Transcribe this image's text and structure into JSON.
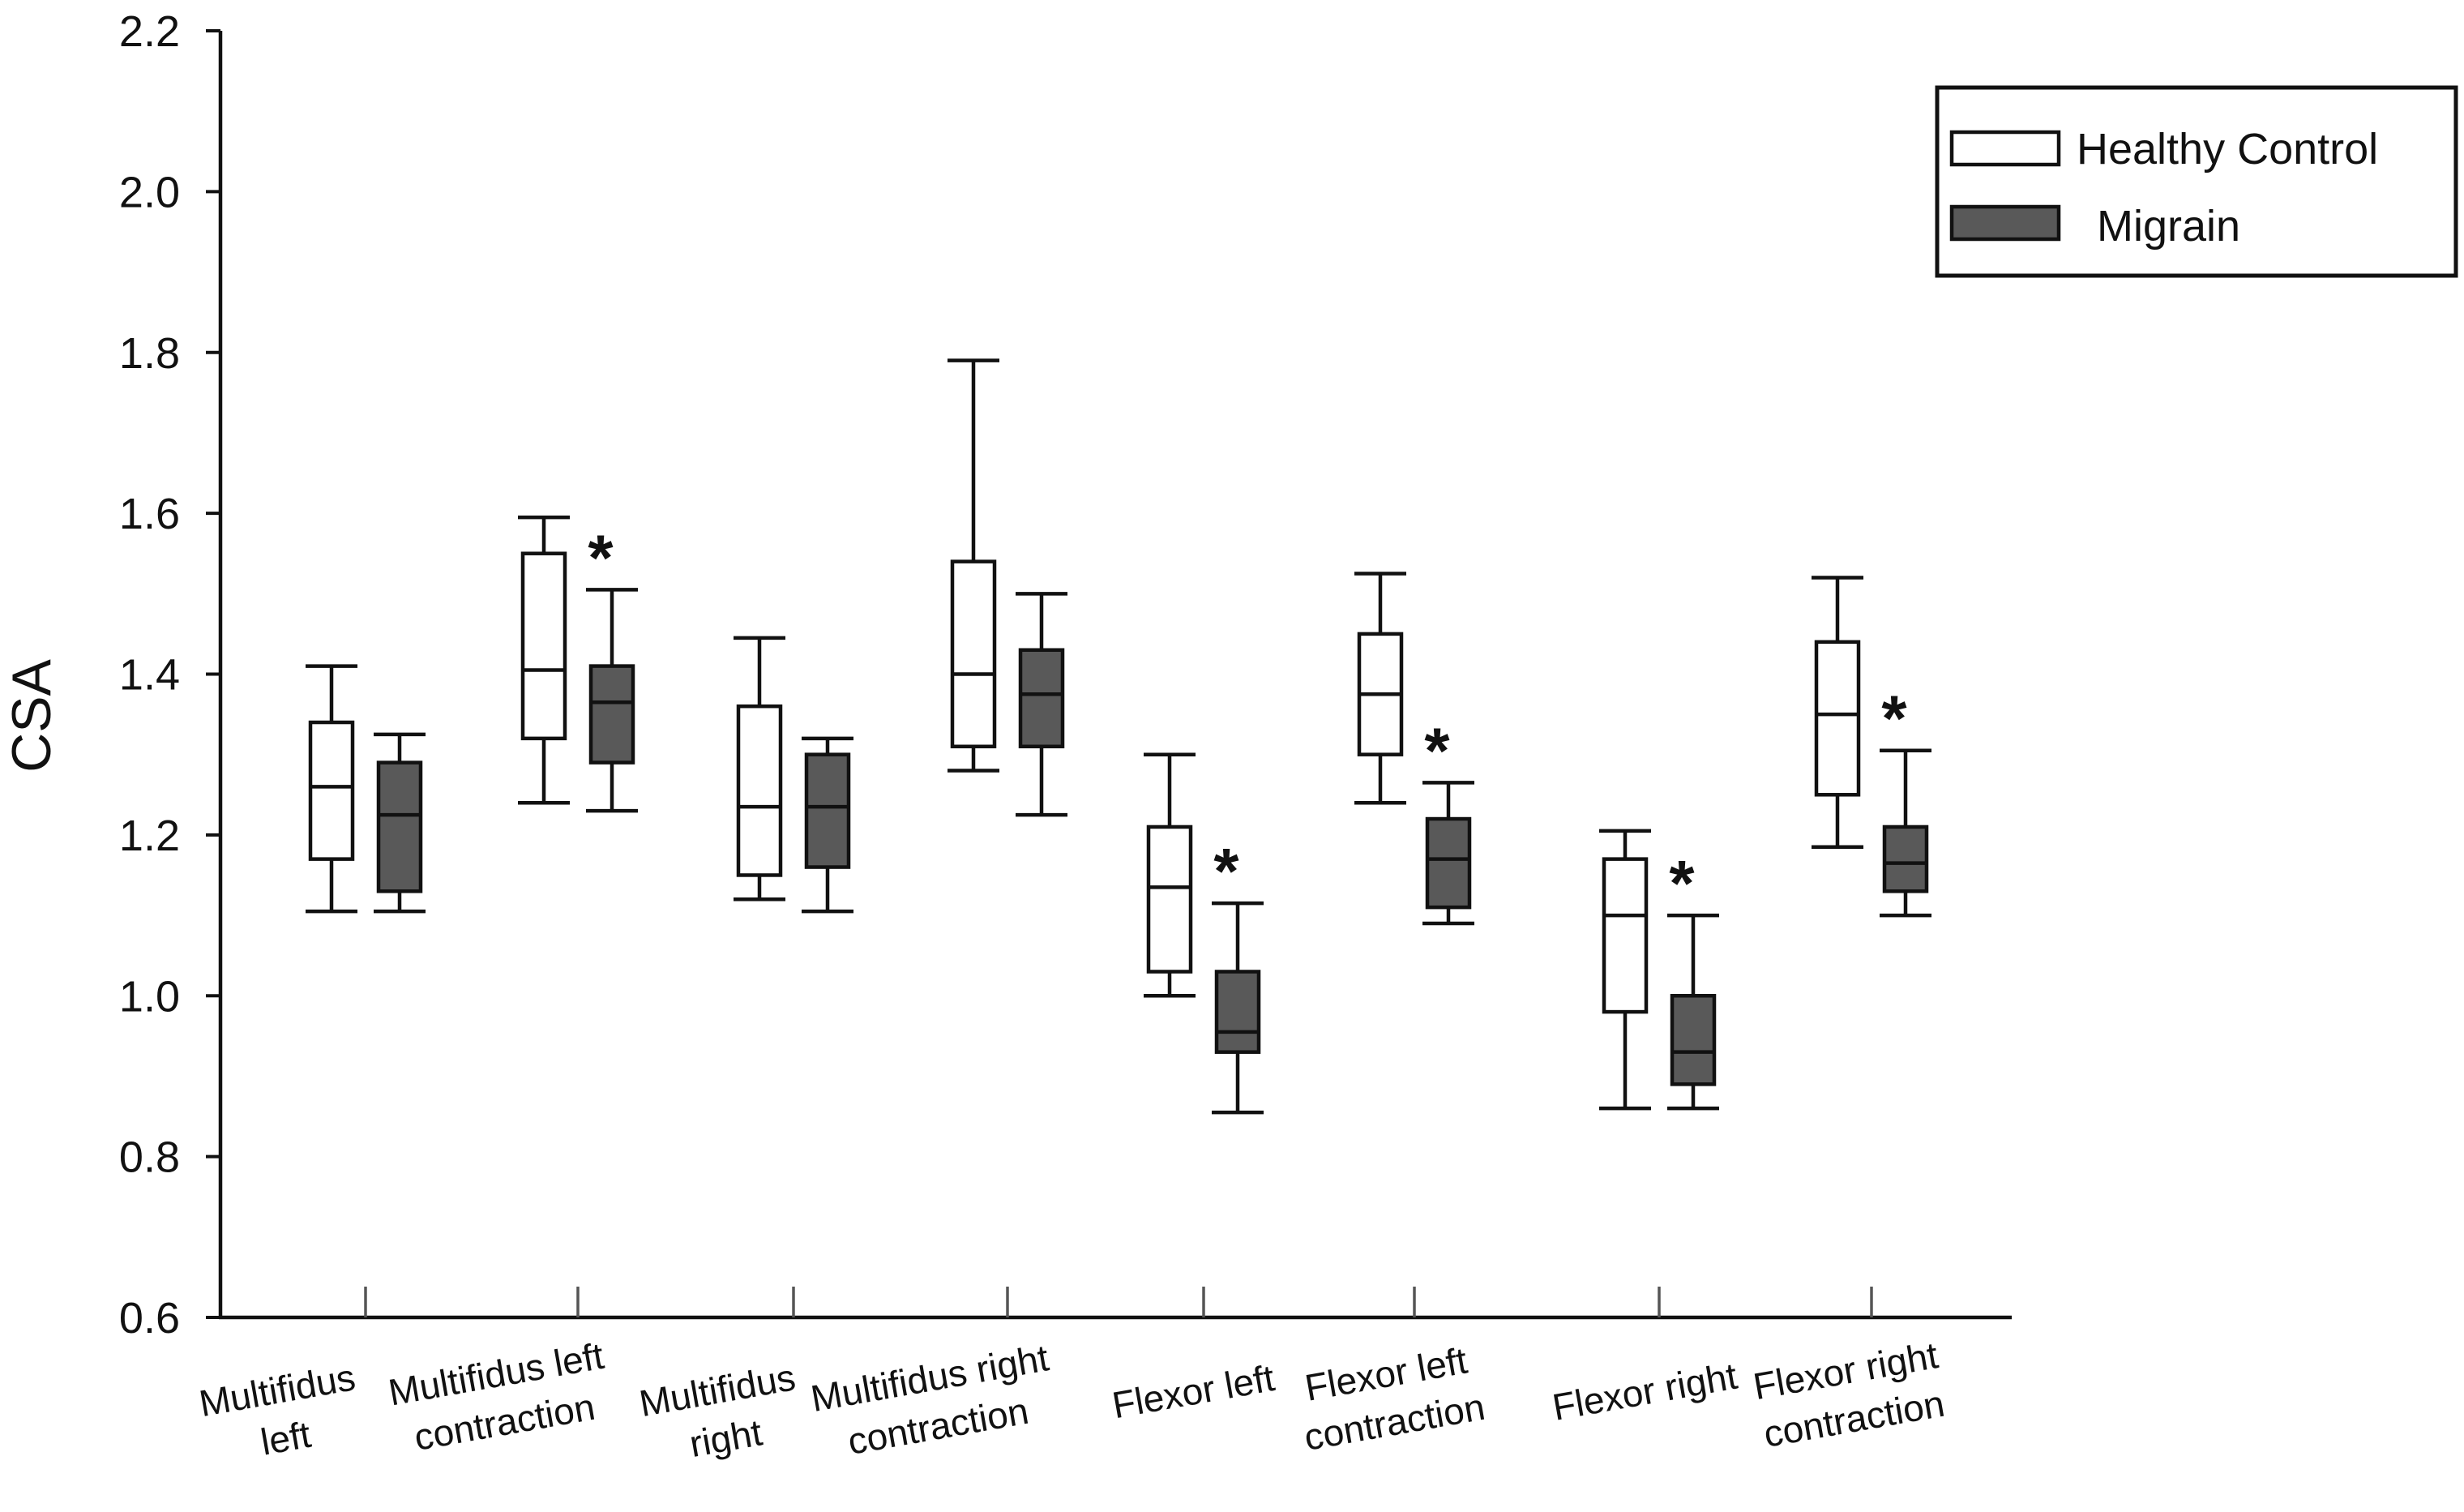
{
  "chart_data": {
    "type": "boxplot",
    "ylabel": "CSA",
    "xlabel": "",
    "ylim": [
      0.6,
      2.2
    ],
    "yticks": [
      "0.6",
      "0.8",
      "1.0",
      "1.2",
      "1.4",
      "1.6",
      "1.8",
      "2.0",
      "2.2"
    ],
    "ytick_values": [
      0.6,
      0.8,
      1.0,
      1.2,
      1.4,
      1.6,
      1.8,
      2.0,
      2.2
    ],
    "categories": [
      [
        "Multifidus",
        "left"
      ],
      [
        "Multifidus left",
        "contraction"
      ],
      [
        "Multifidus",
        "right"
      ],
      [
        "Multifidus right",
        "contraction"
      ],
      [
        "Flexor left"
      ],
      [
        "Flexor left",
        "contraction"
      ],
      [
        "Flexor right"
      ],
      [
        "Flexor right",
        "contraction"
      ]
    ],
    "series": [
      {
        "name": "Healthy Control",
        "color": "#ffffff",
        "boxes": [
          {
            "min": 1.105,
            "q1": 1.17,
            "median": 1.26,
            "q3": 1.34,
            "max": 1.41
          },
          {
            "min": 1.24,
            "q1": 1.32,
            "median": 1.405,
            "q3": 1.55,
            "max": 1.595
          },
          {
            "min": 1.12,
            "q1": 1.15,
            "median": 1.235,
            "q3": 1.36,
            "max": 1.445
          },
          {
            "min": 1.28,
            "q1": 1.31,
            "median": 1.4,
            "q3": 1.54,
            "max": 1.79
          },
          {
            "min": 1.0,
            "q1": 1.03,
            "median": 1.135,
            "q3": 1.21,
            "max": 1.3
          },
          {
            "min": 1.24,
            "q1": 1.3,
            "median": 1.375,
            "q3": 1.45,
            "max": 1.525
          },
          {
            "min": 0.86,
            "q1": 0.98,
            "median": 1.1,
            "q3": 1.17,
            "max": 1.205
          },
          {
            "min": 1.185,
            "q1": 1.25,
            "median": 1.35,
            "q3": 1.44,
            "max": 1.52
          }
        ]
      },
      {
        "name": "Migrain",
        "color": "#595959",
        "boxes": [
          {
            "min": 1.105,
            "q1": 1.13,
            "median": 1.225,
            "q3": 1.29,
            "max": 1.325
          },
          {
            "min": 1.23,
            "q1": 1.29,
            "median": 1.365,
            "q3": 1.41,
            "max": 1.505
          },
          {
            "min": 1.105,
            "q1": 1.16,
            "median": 1.235,
            "q3": 1.3,
            "max": 1.32
          },
          {
            "min": 1.225,
            "q1": 1.31,
            "median": 1.375,
            "q3": 1.43,
            "max": 1.5
          },
          {
            "min": 0.855,
            "q1": 0.93,
            "median": 0.955,
            "q3": 1.03,
            "max": 1.115
          },
          {
            "min": 1.09,
            "q1": 1.11,
            "median": 1.17,
            "q3": 1.22,
            "max": 1.265
          },
          {
            "min": 0.86,
            "q1": 0.89,
            "median": 0.93,
            "q3": 1.0,
            "max": 1.1
          },
          {
            "min": 1.1,
            "q1": 1.13,
            "median": 1.165,
            "q3": 1.21,
            "max": 1.305
          }
        ]
      }
    ],
    "significance_marker": "*",
    "significant_categories": [
      1,
      4,
      5,
      6,
      7
    ],
    "legend": {
      "position": "top-right",
      "entries": [
        "Healthy Control",
        "Migrain"
      ]
    }
  },
  "colors": {
    "axis": "#111111",
    "healthy_fill": "#ffffff",
    "migraine_fill": "#595959"
  }
}
